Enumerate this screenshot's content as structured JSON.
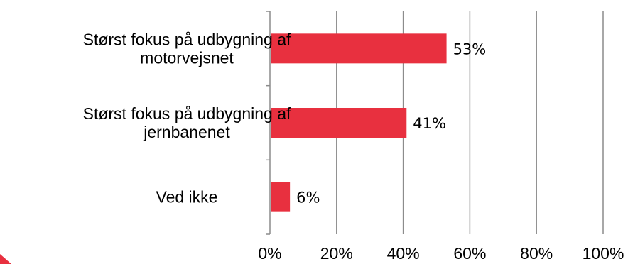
{
  "chart_data": {
    "type": "bar",
    "orientation": "horizontal",
    "categories": [
      [
        "Størst fokus på udbygning af",
        "motorvejsnet"
      ],
      [
        "Størst fokus på udbygning af",
        "jernbanenet"
      ],
      [
        "Ved ikke"
      ]
    ],
    "values": [
      53,
      41,
      6
    ],
    "data_labels": [
      "53%",
      "41%",
      "6%"
    ],
    "xlim": [
      0,
      100
    ],
    "x_ticks": [
      0,
      20,
      40,
      60,
      80,
      100
    ],
    "x_tick_labels": [
      "0%",
      "20%",
      "40%",
      "60%",
      "80%",
      "100%"
    ],
    "bar_color": "#e8303f",
    "grid": true,
    "legend": "none",
    "title": "",
    "xlabel": "",
    "ylabel": ""
  }
}
